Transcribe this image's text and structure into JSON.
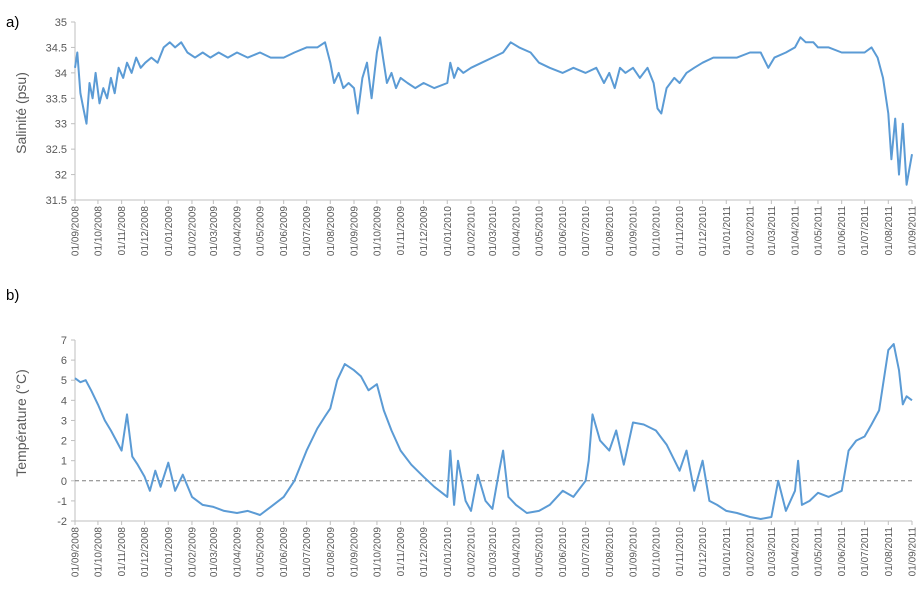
{
  "colors": {
    "series": "#5b9bd5",
    "axis": "#bfbfbf",
    "text": "#595959",
    "zero_line": "#7f7f7f"
  },
  "chart_data": [
    {
      "panel": "a)",
      "type": "line",
      "ylabel": "Salinité (psu)",
      "ylim": [
        31.5,
        35
      ],
      "yticks": [
        "35",
        "34.5",
        "34",
        "33.5",
        "33",
        "32.5",
        "32",
        "31.5"
      ],
      "xlim": [
        "2008-09-01",
        "2011-09-01"
      ],
      "xticks": [
        "01/09/2008",
        "01/10/2008",
        "01/11/2008",
        "01/12/2008",
        "01/01/2009",
        "01/02/2009",
        "01/03/2009",
        "01/04/2009",
        "01/05/2009",
        "01/06/2009",
        "01/07/2009",
        "01/08/2009",
        "01/09/2009",
        "01/10/2009",
        "01/11/2009",
        "01/12/2009",
        "01/01/2010",
        "01/02/2010",
        "01/03/2010",
        "01/04/2010",
        "01/05/2010",
        "01/06/2010",
        "01/07/2010",
        "01/08/2010",
        "01/09/2010",
        "01/10/2010",
        "01/11/2010",
        "01/12/2010",
        "01/01/2011",
        "01/02/2011",
        "01/03/2011",
        "01/04/2011",
        "01/05/2011",
        "01/06/2011",
        "01/07/2011",
        "01/08/2011",
        "01/09/2011"
      ],
      "grid": false,
      "series": [
        {
          "x": [
            "2008-09-01",
            "2008-09-04",
            "2008-09-08",
            "2008-09-12",
            "2008-09-16",
            "2008-09-20",
            "2008-09-24",
            "2008-09-28",
            "2008-10-03",
            "2008-10-08",
            "2008-10-13",
            "2008-10-18",
            "2008-10-23",
            "2008-10-28",
            "2008-11-03",
            "2008-11-08",
            "2008-11-14",
            "2008-11-20",
            "2008-11-26",
            "2008-12-02",
            "2008-12-10",
            "2008-12-18",
            "2008-12-26",
            "2009-01-03",
            "2009-01-10",
            "2009-01-18",
            "2009-01-26",
            "2009-02-05",
            "2009-02-15",
            "2009-02-25",
            "2009-03-08",
            "2009-03-20",
            "2009-04-01",
            "2009-04-15",
            "2009-05-01",
            "2009-05-15",
            "2009-06-01",
            "2009-06-15",
            "2009-07-01",
            "2009-07-15",
            "2009-07-25",
            "2009-08-01",
            "2009-08-06",
            "2009-08-12",
            "2009-08-18",
            "2009-08-25",
            "2009-09-01",
            "2009-09-06",
            "2009-09-12",
            "2009-09-18",
            "2009-09-24",
            "2009-10-01",
            "2009-10-05",
            "2009-10-09",
            "2009-10-14",
            "2009-10-20",
            "2009-10-26",
            "2009-11-01",
            "2009-11-10",
            "2009-11-20",
            "2009-12-01",
            "2009-12-15",
            "2010-01-01",
            "2010-01-05",
            "2010-01-10",
            "2010-01-15",
            "2010-01-22",
            "2010-02-01",
            "2010-02-15",
            "2010-03-01",
            "2010-03-15",
            "2010-03-25",
            "2010-04-05",
            "2010-04-20",
            "2010-05-01",
            "2010-05-15",
            "2010-06-01",
            "2010-06-15",
            "2010-07-01",
            "2010-07-15",
            "2010-07-25",
            "2010-08-01",
            "2010-08-08",
            "2010-08-15",
            "2010-08-22",
            "2010-09-01",
            "2010-09-10",
            "2010-09-20",
            "2010-09-28",
            "2010-10-03",
            "2010-10-08",
            "2010-10-15",
            "2010-10-25",
            "2010-11-01",
            "2010-11-10",
            "2010-11-20",
            "2010-12-01",
            "2010-12-15",
            "2011-01-01",
            "2011-01-15",
            "2011-02-01",
            "2011-02-15",
            "2011-02-25",
            "2011-03-05",
            "2011-03-20",
            "2011-04-01",
            "2011-04-08",
            "2011-04-15",
            "2011-04-25",
            "2011-05-01",
            "2011-05-15",
            "2011-06-01",
            "2011-06-15",
            "2011-07-01",
            "2011-07-10",
            "2011-07-18",
            "2011-07-25",
            "2011-08-01",
            "2011-08-05",
            "2011-08-10",
            "2011-08-15",
            "2011-08-20",
            "2011-08-25",
            "2011-09-01"
          ],
          "y": [
            34.1,
            34.4,
            33.6,
            33.3,
            33.0,
            33.8,
            33.5,
            34.0,
            33.4,
            33.7,
            33.5,
            33.9,
            33.6,
            34.1,
            33.9,
            34.2,
            34.0,
            34.3,
            34.1,
            34.2,
            34.3,
            34.2,
            34.5,
            34.6,
            34.5,
            34.6,
            34.4,
            34.3,
            34.4,
            34.3,
            34.4,
            34.3,
            34.4,
            34.3,
            34.4,
            34.3,
            34.3,
            34.4,
            34.5,
            34.5,
            34.6,
            34.2,
            33.8,
            34.0,
            33.7,
            33.8,
            33.7,
            33.2,
            33.9,
            34.2,
            33.5,
            34.4,
            34.7,
            34.3,
            33.8,
            34.0,
            33.7,
            33.9,
            33.8,
            33.7,
            33.8,
            33.7,
            33.8,
            34.2,
            33.9,
            34.1,
            34.0,
            34.1,
            34.2,
            34.3,
            34.4,
            34.6,
            34.5,
            34.4,
            34.2,
            34.1,
            34.0,
            34.1,
            34.0,
            34.1,
            33.8,
            34.0,
            33.7,
            34.1,
            34.0,
            34.1,
            33.9,
            34.1,
            33.8,
            33.3,
            33.2,
            33.7,
            33.9,
            33.8,
            34.0,
            34.1,
            34.2,
            34.3,
            34.3,
            34.3,
            34.4,
            34.4,
            34.1,
            34.3,
            34.4,
            34.5,
            34.7,
            34.6,
            34.6,
            34.5,
            34.5,
            34.4,
            34.4,
            34.4,
            34.5,
            34.3,
            33.9,
            33.2,
            32.3,
            33.1,
            32.0,
            33.0,
            31.8,
            32.4
          ]
        }
      ]
    },
    {
      "panel": "b)",
      "type": "line",
      "ylabel": "Température (°C)",
      "ylim": [
        -2,
        7
      ],
      "yticks": [
        "7",
        "6",
        "5",
        "4",
        "3",
        "2",
        "1",
        "0",
        "-1",
        "-2"
      ],
      "xlim": [
        "2008-09-01",
        "2011-09-01"
      ],
      "xticks": [
        "01/09/2008",
        "01/10/2008",
        "01/11/2008",
        "01/12/2008",
        "01/01/2009",
        "01/02/2009",
        "01/03/2009",
        "01/04/2009",
        "01/05/2009",
        "01/06/2009",
        "01/07/2009",
        "01/08/2009",
        "01/09/2009",
        "01/10/2009",
        "01/11/2009",
        "01/12/2009",
        "01/01/2010",
        "01/02/2010",
        "01/03/2010",
        "01/04/2010",
        "01/05/2010",
        "01/06/2010",
        "01/07/2010",
        "01/08/2010",
        "01/09/2010",
        "01/10/2010",
        "01/11/2010",
        "01/12/2010",
        "01/01/2011",
        "01/02/2011",
        "01/03/2011",
        "01/04/2011",
        "01/05/2011",
        "01/06/2011",
        "01/07/2011",
        "01/08/2011",
        "01/09/2011"
      ],
      "grid": false,
      "reference_line": {
        "y": 0,
        "style": "dashed"
      },
      "series": [
        {
          "x": [
            "2008-09-01",
            "2008-09-08",
            "2008-09-15",
            "2008-09-22",
            "2008-10-01",
            "2008-10-10",
            "2008-10-18",
            "2008-10-25",
            "2008-11-01",
            "2008-11-08",
            "2008-11-15",
            "2008-11-22",
            "2008-12-01",
            "2008-12-08",
            "2008-12-15",
            "2008-12-22",
            "2009-01-01",
            "2009-01-10",
            "2009-01-20",
            "2009-02-01",
            "2009-02-15",
            "2009-03-01",
            "2009-03-15",
            "2009-04-01",
            "2009-04-15",
            "2009-05-01",
            "2009-05-15",
            "2009-06-01",
            "2009-06-15",
            "2009-07-01",
            "2009-07-15",
            "2009-07-25",
            "2009-08-01",
            "2009-08-10",
            "2009-08-20",
            "2009-09-01",
            "2009-09-10",
            "2009-09-20",
            "2009-10-01",
            "2009-10-10",
            "2009-10-20",
            "2009-11-01",
            "2009-11-15",
            "2009-12-01",
            "2009-12-15",
            "2010-01-01",
            "2010-01-05",
            "2010-01-10",
            "2010-01-15",
            "2010-01-25",
            "2010-02-01",
            "2010-02-10",
            "2010-02-20",
            "2010-03-01",
            "2010-03-10",
            "2010-03-15",
            "2010-03-22",
            "2010-04-01",
            "2010-04-15",
            "2010-05-01",
            "2010-05-15",
            "2010-06-01",
            "2010-06-15",
            "2010-07-01",
            "2010-07-05",
            "2010-07-10",
            "2010-07-20",
            "2010-08-01",
            "2010-08-10",
            "2010-08-20",
            "2010-09-01",
            "2010-09-15",
            "2010-10-01",
            "2010-10-15",
            "2010-11-01",
            "2010-11-10",
            "2010-11-20",
            "2010-12-01",
            "2010-12-10",
            "2010-12-20",
            "2011-01-01",
            "2011-01-15",
            "2011-02-01",
            "2011-02-15",
            "2011-03-01",
            "2011-03-10",
            "2011-03-20",
            "2011-04-01",
            "2011-04-05",
            "2011-04-10",
            "2011-04-20",
            "2011-05-01",
            "2011-05-15",
            "2011-06-01",
            "2011-06-10",
            "2011-06-20",
            "2011-07-01",
            "2011-07-10",
            "2011-07-20",
            "2011-08-01",
            "2011-08-08",
            "2011-08-15",
            "2011-08-20",
            "2011-08-25",
            "2011-09-01"
          ],
          "y": [
            5.1,
            4.9,
            5.0,
            4.5,
            3.8,
            3.0,
            2.5,
            2.0,
            1.5,
            3.3,
            1.2,
            0.8,
            0.2,
            -0.5,
            0.5,
            -0.3,
            0.9,
            -0.5,
            0.3,
            -0.8,
            -1.2,
            -1.3,
            -1.5,
            -1.6,
            -1.5,
            -1.7,
            -1.3,
            -0.8,
            0.0,
            1.5,
            2.6,
            3.2,
            3.6,
            5.0,
            5.8,
            5.5,
            5.2,
            4.5,
            4.8,
            3.5,
            2.5,
            1.5,
            0.8,
            0.2,
            -0.3,
            -0.8,
            1.5,
            -1.2,
            1.0,
            -1.0,
            -1.5,
            0.3,
            -1.0,
            -1.4,
            0.5,
            1.5,
            -0.8,
            -1.2,
            -1.6,
            -1.5,
            -1.2,
            -0.5,
            -0.8,
            0.0,
            1.0,
            3.3,
            2.0,
            1.5,
            2.5,
            0.8,
            2.9,
            2.8,
            2.5,
            1.8,
            0.5,
            1.5,
            -0.5,
            1.0,
            -1.0,
            -1.2,
            -1.5,
            -1.6,
            -1.8,
            -1.9,
            -1.8,
            0.0,
            -1.5,
            -0.5,
            1.0,
            -1.2,
            -1.0,
            -0.6,
            -0.8,
            -0.5,
            1.5,
            2.0,
            2.2,
            2.8,
            3.5,
            6.5,
            6.8,
            5.5,
            3.8,
            4.2,
            4.0
          ]
        }
      ]
    }
  ]
}
